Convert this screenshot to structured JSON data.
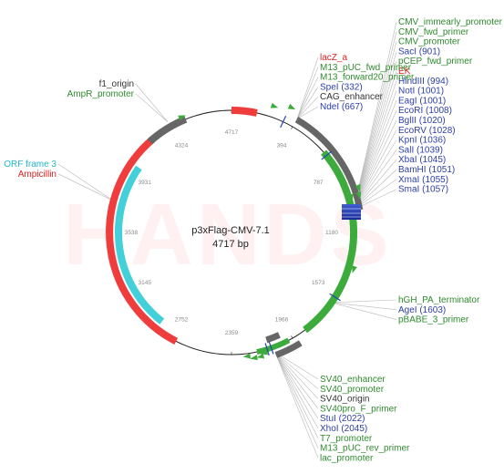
{
  "plasmid": {
    "name": "p3xFlag-CMV-7.1",
    "length_label": "4717 bp",
    "length": 4717
  },
  "watermark": "HANDS",
  "ticks": [
    "394",
    "787",
    "1180",
    "1573",
    "1966",
    "2359",
    "2752",
    "3145",
    "3538",
    "3931",
    "4324",
    "4717"
  ],
  "colors": {
    "backbone": "#222222",
    "feature_green": "#3cab3c",
    "feature_gray": "#666666",
    "feature_red": "#ef3d3d",
    "feature_cyan": "#43d0d8",
    "site_blue": "#2443b0",
    "label_green": "#2e8b2e",
    "label_red": "#e02020",
    "label_blue": "#2c3fa8",
    "label_dark": "#333333",
    "label_cyan": "#22b8c8"
  },
  "labels": {
    "top_right": [
      {
        "text": "CMV_immearly_promoter",
        "color": "green"
      },
      {
        "text": "CMV_fwd_primer",
        "color": "green"
      },
      {
        "text": "CMV_promoter",
        "color": "green"
      },
      {
        "text": "SacI (901)",
        "color": "blue"
      },
      {
        "text": "pCEP_fwd_primer",
        "color": "green"
      },
      {
        "text": "EK",
        "color": "red"
      },
      {
        "text": "HindIII (994)",
        "color": "blue"
      },
      {
        "text": "NotI (1001)",
        "color": "blue"
      },
      {
        "text": "EagI (1001)",
        "color": "blue"
      },
      {
        "text": "EcoRI (1008)",
        "color": "blue"
      },
      {
        "text": "BglII (1020)",
        "color": "blue"
      },
      {
        "text": "EcoRV (1028)",
        "color": "blue"
      },
      {
        "text": "KpnI (1036)",
        "color": "blue"
      },
      {
        "text": "SalI (1039)",
        "color": "blue"
      },
      {
        "text": "XbaI (1045)",
        "color": "blue"
      },
      {
        "text": "BamHI (1051)",
        "color": "blue"
      },
      {
        "text": "XmaI (1055)",
        "color": "blue"
      },
      {
        "text": "SmaI (1057)",
        "color": "blue"
      }
    ],
    "top_middle": [
      {
        "text": "lacZ_a",
        "color": "red"
      },
      {
        "text": "M13_pUC_fwd_primer",
        "color": "green"
      },
      {
        "text": "M13_forward20_primer",
        "color": "green"
      },
      {
        "text": "SpeI (332)",
        "color": "blue"
      },
      {
        "text": "CAG_enhancer",
        "color": "dark"
      },
      {
        "text": "NdeI (667)",
        "color": "blue"
      }
    ],
    "top_left": [
      {
        "text": "f1_origin",
        "color": "dark"
      },
      {
        "text": "AmpR_promoter",
        "color": "green"
      }
    ],
    "left": [
      {
        "text": "ORF frame 3",
        "color": "cyan"
      },
      {
        "text": "Ampicillin",
        "color": "red"
      }
    ],
    "right_bottom": [
      {
        "text": "hGH_PA_terminator",
        "color": "green"
      },
      {
        "text": "AgeI (1603)",
        "color": "blue"
      },
      {
        "text": "pBABE_3_primer",
        "color": "green"
      }
    ],
    "bottom": [
      {
        "text": "SV40_enhancer",
        "color": "green"
      },
      {
        "text": "SV40_promoter",
        "color": "green"
      },
      {
        "text": "SV40_origin",
        "color": "dark"
      },
      {
        "text": "SV40pro_F_primer",
        "color": "green"
      },
      {
        "text": "StuI (2022)",
        "color": "blue"
      },
      {
        "text": "XhoI (2045)",
        "color": "blue"
      },
      {
        "text": "T7_promoter",
        "color": "green"
      },
      {
        "text": "M13_pUC_rev_primer",
        "color": "green"
      },
      {
        "text": "lac_promoter",
        "color": "green"
      }
    ]
  }
}
